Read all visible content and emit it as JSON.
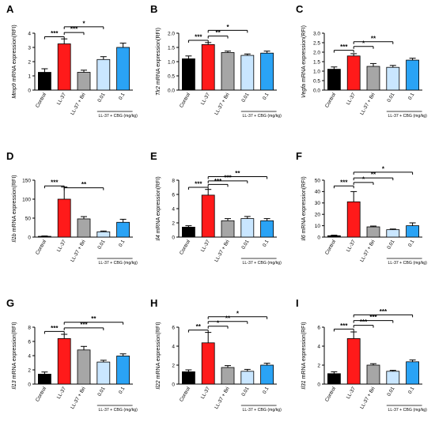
{
  "figure": {
    "categories": [
      "Control",
      "LL-37",
      "LL-37 + Bri",
      "0.01",
      "0.1"
    ],
    "group_label": "LL-37 + CBG (mg/kg)",
    "colors": [
      "#000000",
      "#ff1a1a",
      "#a6a6a6",
      "#c9e6ff",
      "#2aa3f5"
    ]
  },
  "chart_data": [
    {
      "panel": "A",
      "type": "bar",
      "gene": "Mmp9",
      "ylabel_suffix": " mRNA expression(RFI)",
      "ylim": [
        0,
        4
      ],
      "yticks": [
        0,
        1,
        2,
        3,
        4
      ],
      "values": [
        1.25,
        3.25,
        1.25,
        2.15,
        3.0
      ],
      "errors": [
        0.25,
        0.35,
        0.15,
        0.2,
        0.3
      ],
      "significance": [
        {
          "from": 0,
          "to": 1,
          "label": "***",
          "y": 3.75
        },
        {
          "from": 1,
          "to": 2,
          "label": "***",
          "y": 4.05
        },
        {
          "from": 1,
          "to": 3,
          "label": "*",
          "y": 4.45
        }
      ]
    },
    {
      "panel": "B",
      "type": "bar",
      "gene": "Tlr2",
      "ylabel_suffix": " mRNA expression(RFI)",
      "ylim": [
        0,
        2
      ],
      "yticks": [
        0.0,
        0.5,
        1.0,
        1.5,
        2.0
      ],
      "values": [
        1.1,
        1.6,
        1.32,
        1.22,
        1.3
      ],
      "errors": [
        0.1,
        0.07,
        0.05,
        0.05,
        0.07
      ],
      "significance": [
        {
          "from": 0,
          "to": 1,
          "label": "***",
          "y": 1.75
        },
        {
          "from": 1,
          "to": 2,
          "label": "**",
          "y": 1.9
        },
        {
          "from": 1,
          "to": 3,
          "label": "*",
          "y": 2.1
        }
      ]
    },
    {
      "panel": "C",
      "type": "bar",
      "gene": "Vegfa",
      "ylabel_suffix": " mRNA expression(RFI)",
      "ylim": [
        0,
        3
      ],
      "yticks": [
        0.0,
        0.5,
        1.0,
        1.5,
        2.0,
        2.5,
        3.0
      ],
      "values": [
        1.1,
        1.8,
        1.25,
        1.2,
        1.58
      ],
      "errors": [
        0.12,
        0.12,
        0.15,
        0.1,
        0.1
      ],
      "significance": [
        {
          "from": 0,
          "to": 1,
          "label": "***",
          "y": 2.1
        },
        {
          "from": 1,
          "to": 2,
          "label": "*",
          "y": 2.3
        },
        {
          "from": 1,
          "to": 3,
          "label": "**",
          "y": 2.55
        }
      ]
    },
    {
      "panel": "D",
      "type": "bar",
      "gene": "Il1b",
      "ylabel_suffix": " mRNA expression(RFI)",
      "ylim": [
        0,
        150
      ],
      "yticks": [
        0,
        50,
        100,
        150
      ],
      "values": [
        2,
        100,
        48,
        14,
        39
      ],
      "errors": [
        1,
        32,
        6,
        2,
        8
      ],
      "significance": [
        {
          "from": 0,
          "to": 1,
          "label": "***",
          "y": 135
        },
        {
          "from": 1,
          "to": 3,
          "label": "**",
          "y": 130
        }
      ]
    },
    {
      "panel": "E",
      "type": "bar",
      "gene": "Il4",
      "ylabel_suffix": " mRNA expression(RFI)",
      "ylim": [
        0,
        8
      ],
      "yticks": [
        0,
        2,
        4,
        6,
        8
      ],
      "values": [
        1.4,
        5.9,
        2.3,
        2.6,
        2.3
      ],
      "errors": [
        0.2,
        0.8,
        0.3,
        0.3,
        0.3
      ],
      "significance": [
        {
          "from": 0,
          "to": 1,
          "label": "***",
          "y": 7.0
        },
        {
          "from": 1,
          "to": 2,
          "label": "***",
          "y": 7.4
        },
        {
          "from": 1,
          "to": 3,
          "label": "***",
          "y": 7.9
        },
        {
          "from": 1,
          "to": 4,
          "label": "**",
          "y": 8.5
        }
      ]
    },
    {
      "panel": "F",
      "type": "bar",
      "gene": "Il6",
      "ylabel_suffix": " mRNA expression(RFI)",
      "ylim": [
        0,
        50
      ],
      "yticks": [
        0,
        10,
        20,
        30,
        40,
        50
      ],
      "values": [
        1.2,
        31,
        9,
        6.5,
        10
      ],
      "errors": [
        0.5,
        9,
        0.7,
        0.6,
        2.5
      ],
      "significance": [
        {
          "from": 0,
          "to": 1,
          "label": "***",
          "y": 45
        },
        {
          "from": 1,
          "to": 2,
          "label": "*",
          "y": 48
        },
        {
          "from": 1,
          "to": 3,
          "label": "**",
          "y": 52
        },
        {
          "from": 1,
          "to": 4,
          "label": "*",
          "y": 57
        }
      ]
    },
    {
      "panel": "G",
      "type": "bar",
      "gene": "Il13",
      "ylabel_suffix": " mRNA expression(RFI)",
      "ylim": [
        0,
        8
      ],
      "yticks": [
        0,
        2,
        4,
        6,
        8
      ],
      "values": [
        1.4,
        6.4,
        4.8,
        3.1,
        3.95
      ],
      "errors": [
        0.3,
        0.6,
        0.5,
        0.25,
        0.3
      ],
      "significance": [
        {
          "from": 0,
          "to": 1,
          "label": "***",
          "y": 7.4
        },
        {
          "from": 1,
          "to": 3,
          "label": "***",
          "y": 7.9
        },
        {
          "from": 1,
          "to": 4,
          "label": "**",
          "y": 8.7
        }
      ]
    },
    {
      "panel": "H",
      "type": "bar",
      "gene": "Il22",
      "ylabel_suffix": " mRNA expression(RFI)",
      "ylim": [
        0,
        6
      ],
      "yticks": [
        0,
        2,
        4,
        6
      ],
      "values": [
        1.3,
        4.35,
        1.75,
        1.35,
        2.0
      ],
      "errors": [
        0.2,
        1.1,
        0.2,
        0.2,
        0.2
      ],
      "significance": [
        {
          "from": 0,
          "to": 1,
          "label": "**",
          "y": 5.7
        },
        {
          "from": 1,
          "to": 2,
          "label": "*",
          "y": 6.1
        },
        {
          "from": 1,
          "to": 3,
          "label": "**",
          "y": 6.6
        },
        {
          "from": 1,
          "to": 4,
          "label": "*",
          "y": 7.1
        }
      ]
    },
    {
      "panel": "I",
      "type": "bar",
      "gene": "Il31",
      "ylabel_suffix": " mRNA expression(RFI)",
      "ylim": [
        0,
        6
      ],
      "yticks": [
        0,
        2,
        4,
        6
      ],
      "values": [
        1.1,
        4.8,
        2.0,
        1.35,
        2.35
      ],
      "errors": [
        0.2,
        0.7,
        0.15,
        0.1,
        0.2
      ],
      "significance": [
        {
          "from": 0,
          "to": 1,
          "label": "***",
          "y": 5.8
        },
        {
          "from": 1,
          "to": 2,
          "label": "***",
          "y": 6.2
        },
        {
          "from": 1,
          "to": 3,
          "label": "***",
          "y": 6.7
        },
        {
          "from": 1,
          "to": 4,
          "label": "***",
          "y": 7.3
        }
      ]
    }
  ]
}
